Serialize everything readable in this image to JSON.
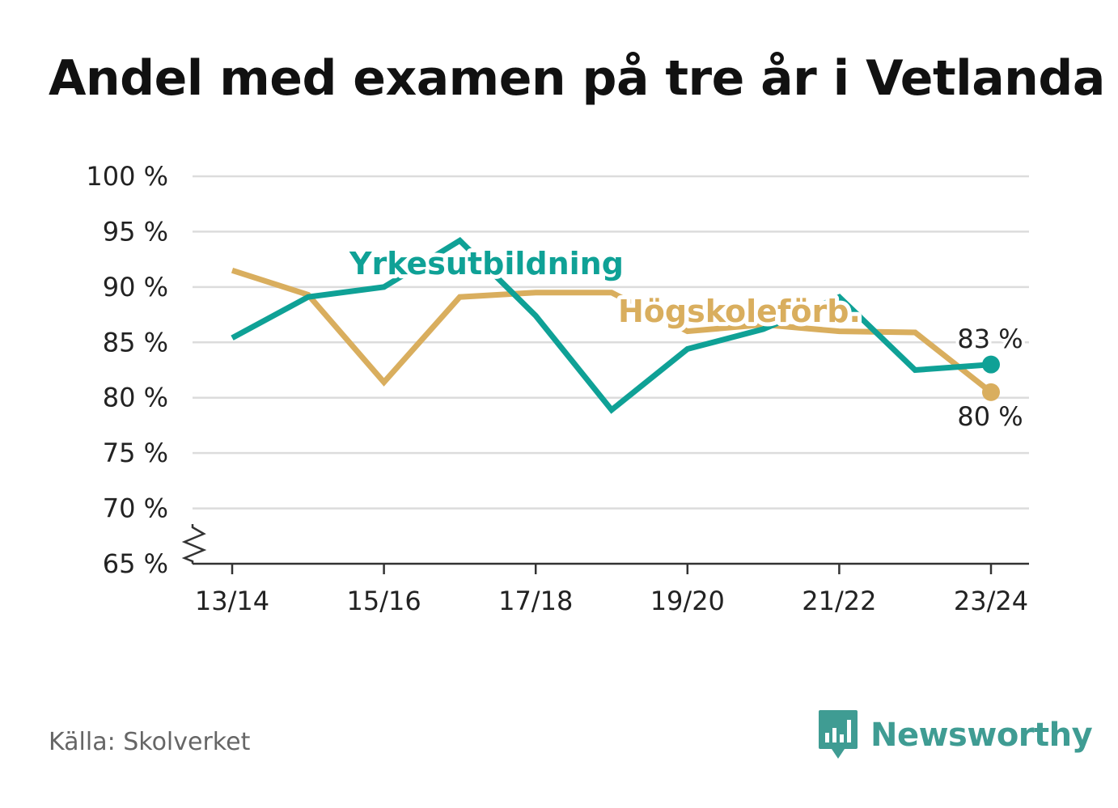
{
  "header": {
    "title": "Andel med examen på tre år i Vetlanda"
  },
  "footer": {
    "source": "Källa: Skolverket",
    "brand": "Newsworthy",
    "brand_icon": "bar-chart-speech-bubble-icon",
    "brand_color": "#3f9c93"
  },
  "chart_data": {
    "type": "line",
    "title": "Andel med examen på tre år i Vetlanda",
    "x": [
      "13/14",
      "14/15",
      "15/16",
      "16/17",
      "17/18",
      "18/19",
      "19/20",
      "20/21",
      "21/22",
      "22/23",
      "23/24"
    ],
    "x_tick_labels": [
      "13/14",
      "15/16",
      "17/18",
      "19/20",
      "21/22",
      "23/24"
    ],
    "ylim": [
      65,
      100
    ],
    "y_ticks": [
      65,
      70,
      75,
      80,
      85,
      90,
      95,
      100
    ],
    "y_tick_labels": [
      "65 %",
      "70 %",
      "75 %",
      "80 %",
      "85 %",
      "90 %",
      "95 %",
      "100 %"
    ],
    "y_axis_break": true,
    "grid": true,
    "series": [
      {
        "name": "Högskoleförb.",
        "color": "#d9ae5e",
        "values": [
          91.5,
          89.3,
          81.4,
          89.1,
          89.5,
          89.5,
          86.0,
          86.6,
          86.0,
          85.9,
          80.5
        ],
        "end_label": "80 %"
      },
      {
        "name": "Yrkesutbildning",
        "color": "#0fa196",
        "values": [
          85.4,
          89.1,
          90.0,
          94.2,
          87.4,
          78.9,
          84.4,
          86.2,
          89.1,
          82.5,
          83.0
        ],
        "end_label": "83 %"
      }
    ]
  }
}
